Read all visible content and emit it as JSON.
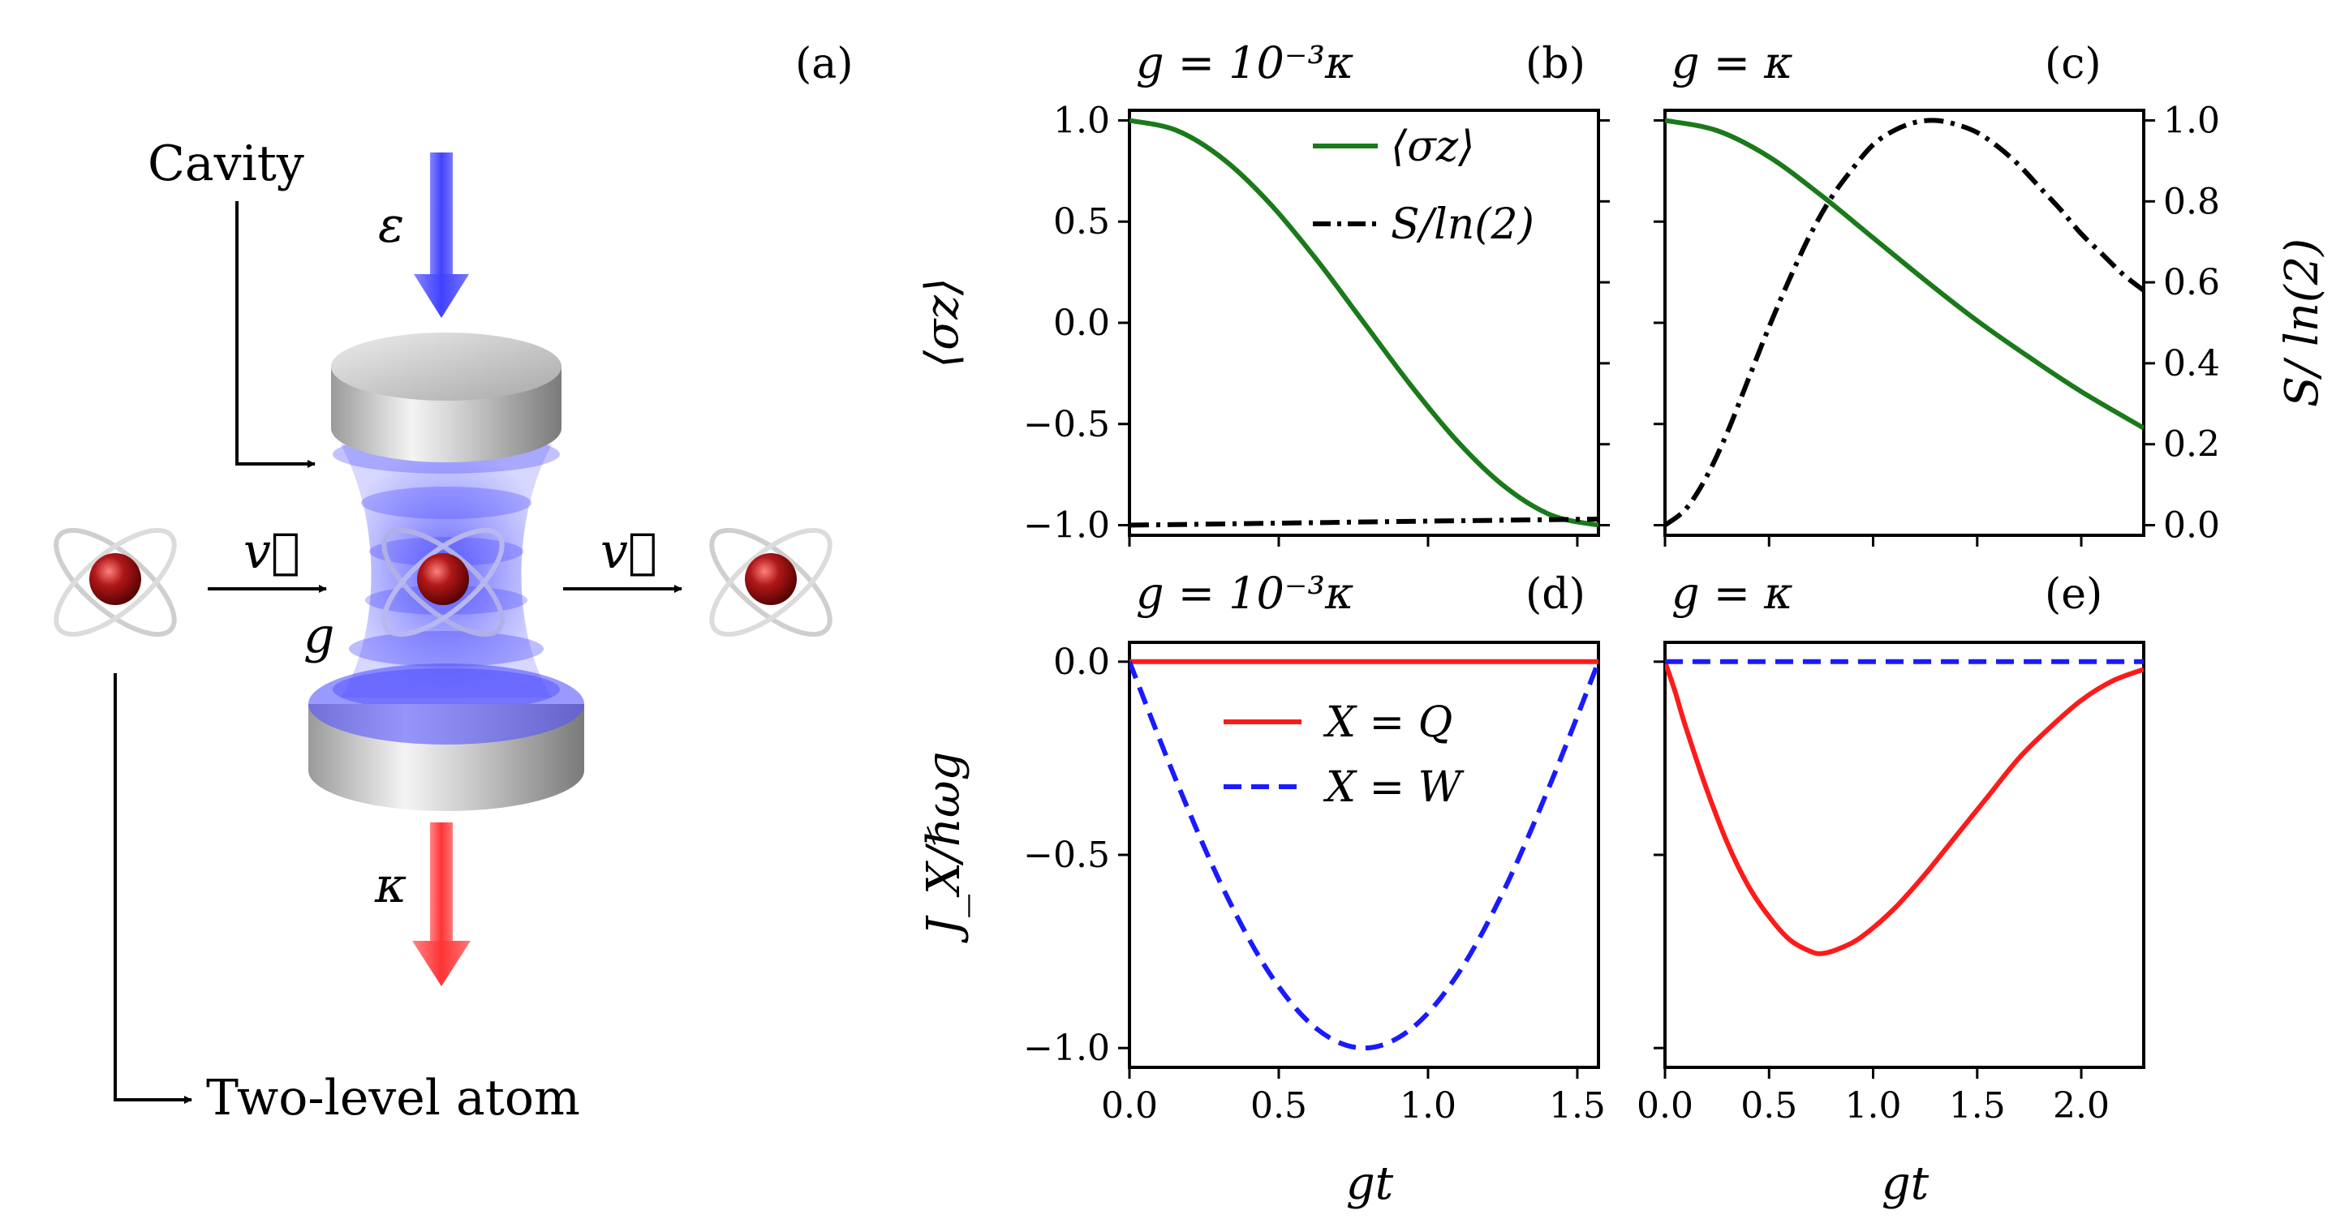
{
  "diagram": {
    "label_a": "(a)",
    "cavity": "Cavity",
    "epsilon": "ε",
    "kappa": "κ",
    "velocity_in": "v⃗",
    "velocity_out": "v⃗",
    "coupling": "g",
    "atom_label": "Two-level atom",
    "colors": {
      "pump": "#4040ff",
      "leak": "#ff2020",
      "atom": "#a01818",
      "mirror": "#bbbbbb"
    }
  },
  "chart_data": [
    {
      "panel": "(b)",
      "header": "g = 10⁻³κ",
      "type": "line",
      "xlim": [
        0,
        1.5708
      ],
      "xticks": [
        0.0,
        0.5,
        1.0,
        1.5
      ],
      "ylim": [
        -1.05,
        1.05
      ],
      "yticks": [
        1.0,
        0.5,
        0.0,
        -0.5,
        -1.0
      ],
      "ylabel": "⟨σz⟩",
      "y2lim": [
        -0.025,
        1.025
      ],
      "series": [
        {
          "name": "⟨σz⟩",
          "color": "#1a7a1a",
          "style": "solid",
          "x": [
            0,
            0.1571,
            0.3142,
            0.4712,
            0.6283,
            0.7854,
            0.9425,
            1.0996,
            1.2566,
            1.4137,
            1.5708
          ],
          "y": [
            1.0,
            0.951,
            0.809,
            0.588,
            0.309,
            0.0,
            -0.309,
            -0.588,
            -0.809,
            -0.951,
            -1.0
          ]
        },
        {
          "name": "S/ln(2)",
          "color": "#000000",
          "style": "dashdot",
          "axis": "right",
          "x": [
            0,
            0.5,
            1.0,
            1.5708
          ],
          "y": [
            0.0,
            0.005,
            0.01,
            0.015
          ]
        }
      ],
      "legend_position": "upper right"
    },
    {
      "panel": "(c)",
      "header": "g = κ",
      "type": "line",
      "xlim": [
        0,
        2.3
      ],
      "xticks": [
        0.0,
        0.5,
        1.0,
        1.5,
        2.0
      ],
      "ylim": [
        -1.05,
        1.05
      ],
      "y2lim": [
        -0.025,
        1.025
      ],
      "y2ticks": [
        1.0,
        0.8,
        0.6,
        0.4,
        0.2,
        0.0
      ],
      "y2label": "S/ ln(2)",
      "series": [
        {
          "name": "⟨σz⟩",
          "color": "#1a7a1a",
          "style": "solid",
          "x": [
            0,
            0.25,
            0.5,
            0.75,
            1.0,
            1.25,
            1.5,
            1.75,
            2.0,
            2.3
          ],
          "y": [
            1.0,
            0.95,
            0.82,
            0.63,
            0.42,
            0.21,
            0.01,
            -0.17,
            -0.34,
            -0.52
          ]
        },
        {
          "name": "S/ln(2)",
          "color": "#000000",
          "style": "dashdot",
          "axis": "right",
          "x": [
            0,
            0.1,
            0.2,
            0.3,
            0.4,
            0.5,
            0.6,
            0.7,
            0.8,
            0.9,
            1.0,
            1.1,
            1.2,
            1.3,
            1.4,
            1.5,
            1.6,
            1.7,
            1.8,
            1.9,
            2.0,
            2.1,
            2.2,
            2.3
          ],
          "y": [
            0.0,
            0.04,
            0.12,
            0.23,
            0.36,
            0.49,
            0.61,
            0.72,
            0.81,
            0.88,
            0.94,
            0.975,
            0.995,
            1.0,
            0.99,
            0.97,
            0.935,
            0.89,
            0.835,
            0.78,
            0.72,
            0.67,
            0.62,
            0.58
          ]
        }
      ]
    },
    {
      "panel": "(d)",
      "header": "g = 10⁻³κ",
      "type": "line",
      "xlim": [
        0,
        1.5708
      ],
      "xticks": [
        0.0,
        0.5,
        1.0,
        1.5
      ],
      "ylim": [
        -1.05,
        0.05
      ],
      "yticks": [
        0.0,
        -0.5,
        -1.0
      ],
      "ylabel": "J_X/ℏωg",
      "xlabel": "gt",
      "series": [
        {
          "name": "X = Q",
          "color": "#ff1a1a",
          "style": "solid",
          "x": [
            0,
            1.5708
          ],
          "y": [
            0.0,
            0.0
          ]
        },
        {
          "name": "X = W",
          "color": "#1a1aff",
          "style": "dashed",
          "x": [
            0,
            0.1571,
            0.3142,
            0.4712,
            0.6283,
            0.7854,
            0.9425,
            1.0996,
            1.2566,
            1.4137,
            1.5708
          ],
          "y": [
            0.0,
            -0.309,
            -0.588,
            -0.809,
            -0.951,
            -1.0,
            -0.951,
            -0.809,
            -0.588,
            -0.309,
            0.0
          ]
        }
      ],
      "legend_position": "upper center"
    },
    {
      "panel": "(e)",
      "header": "g = κ",
      "type": "line",
      "xlim": [
        0,
        2.3
      ],
      "xticks": [
        0.0,
        0.5,
        1.0,
        1.5,
        2.0
      ],
      "ylim": [
        -1.05,
        0.05
      ],
      "xlabel": "gt",
      "series": [
        {
          "name": "X = Q",
          "color": "#ff1a1a",
          "style": "solid",
          "x": [
            0,
            0.05,
            0.1,
            0.2,
            0.3,
            0.4,
            0.5,
            0.6,
            0.7,
            0.76,
            0.85,
            0.95,
            1.1,
            1.25,
            1.4,
            1.55,
            1.7,
            1.85,
            2.0,
            2.15,
            2.3
          ],
          "y": [
            0.0,
            -0.08,
            -0.17,
            -0.33,
            -0.47,
            -0.58,
            -0.66,
            -0.72,
            -0.75,
            -0.755,
            -0.74,
            -0.71,
            -0.64,
            -0.55,
            -0.45,
            -0.35,
            -0.25,
            -0.17,
            -0.1,
            -0.05,
            -0.02
          ]
        },
        {
          "name": "X = W",
          "color": "#1a1aff",
          "style": "dashed",
          "x": [
            0,
            2.3
          ],
          "y": [
            0.0,
            0.0
          ]
        }
      ]
    }
  ]
}
